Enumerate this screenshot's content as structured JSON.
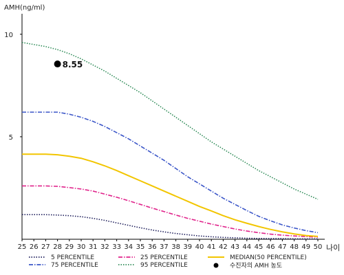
{
  "chart_data": {
    "type": "line",
    "ylabel": "AMH(ng/ml)",
    "xlabel": "나이",
    "xlim": [
      25,
      50
    ],
    "ylim": [
      0,
      11
    ],
    "x_ticks": [
      25,
      26,
      27,
      28,
      29,
      30,
      31,
      32,
      33,
      34,
      35,
      36,
      37,
      38,
      39,
      40,
      41,
      42,
      43,
      44,
      45,
      46,
      47,
      48,
      49,
      50
    ],
    "y_ticks": [
      5,
      10
    ],
    "x": [
      25,
      26,
      27,
      28,
      29,
      30,
      31,
      32,
      33,
      34,
      35,
      36,
      37,
      38,
      39,
      40,
      41,
      42,
      43,
      44,
      45,
      46,
      47,
      48,
      49,
      50
    ],
    "series": [
      {
        "name": "5 PERCENTILE",
        "color": "#1f1f5c",
        "dash": "dotted",
        "values": [
          1.2,
          1.2,
          1.2,
          1.18,
          1.15,
          1.1,
          1.02,
          0.92,
          0.8,
          0.68,
          0.56,
          0.45,
          0.36,
          0.28,
          0.22,
          0.16,
          0.12,
          0.09,
          0.07,
          0.05,
          0.04,
          0.03,
          0.03,
          0.02,
          0.02,
          0.02
        ]
      },
      {
        "name": "75 PERCENTILE",
        "color": "#3a55c8",
        "dash": "dashdot",
        "values": [
          6.2,
          6.2,
          6.2,
          6.2,
          6.1,
          5.95,
          5.75,
          5.5,
          5.2,
          4.9,
          4.55,
          4.2,
          3.85,
          3.45,
          3.05,
          2.7,
          2.35,
          2.0,
          1.7,
          1.4,
          1.12,
          0.9,
          0.7,
          0.55,
          0.42,
          0.32
        ]
      },
      {
        "name": "25 PERCENTILE",
        "color": "#e0218a",
        "dash": "dashdot",
        "values": [
          2.6,
          2.6,
          2.6,
          2.58,
          2.52,
          2.45,
          2.35,
          2.2,
          2.05,
          1.88,
          1.7,
          1.52,
          1.35,
          1.18,
          1.02,
          0.88,
          0.74,
          0.62,
          0.5,
          0.4,
          0.32,
          0.25,
          0.2,
          0.16,
          0.13,
          0.1
        ]
      },
      {
        "name": "95 PERCENTILE",
        "color": "#2e8b57",
        "dash": "dotted",
        "values": [
          9.6,
          9.5,
          9.4,
          9.25,
          9.05,
          8.8,
          8.5,
          8.2,
          7.85,
          7.5,
          7.15,
          6.75,
          6.35,
          5.95,
          5.55,
          5.15,
          4.75,
          4.4,
          4.05,
          3.7,
          3.35,
          3.05,
          2.75,
          2.45,
          2.2,
          1.95
        ]
      },
      {
        "name": "MEDIAN(50 PERCENTILE)",
        "color": "#f2c500",
        "dash": "solid",
        "values": [
          4.15,
          4.15,
          4.15,
          4.12,
          4.05,
          3.95,
          3.78,
          3.58,
          3.35,
          3.1,
          2.85,
          2.6,
          2.35,
          2.1,
          1.85,
          1.6,
          1.38,
          1.15,
          0.95,
          0.78,
          0.62,
          0.48,
          0.36,
          0.26,
          0.18,
          0.14
        ]
      }
    ],
    "annotation": {
      "name": "수진자의 AMH 농도",
      "x": 28,
      "y": 8.55,
      "label": "8.55"
    },
    "grid": false,
    "legend_placement": "bottom"
  }
}
